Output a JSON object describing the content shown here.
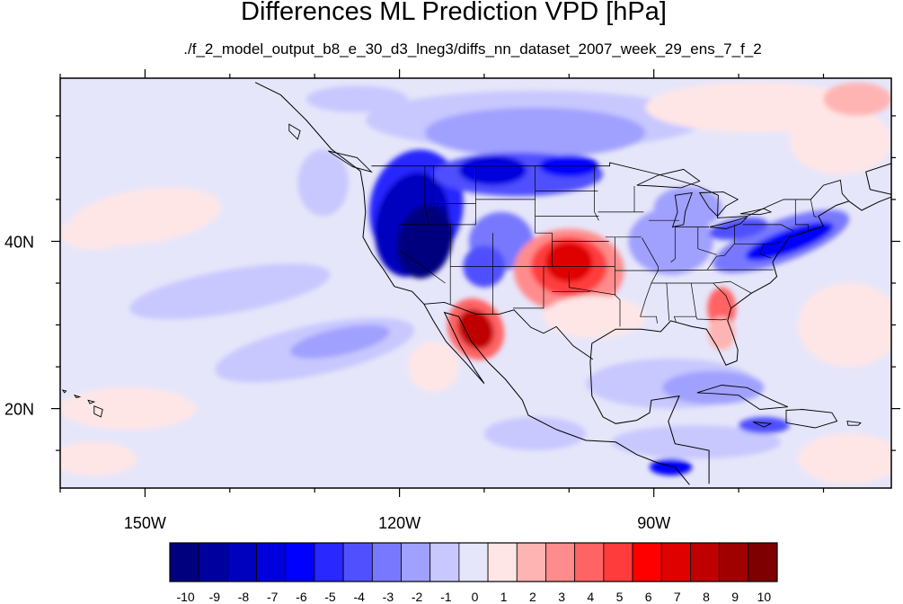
{
  "figure": {
    "title": "Differences ML Prediction VPD [hPa]",
    "subtitle": "./f_2_model_output_b8_e_30_d3_lneg3/diffs_nn_dataset_2007_week_29_ens_7_f_2"
  },
  "map": {
    "projection": "cylindrical-equidistant",
    "lon_range": [
      -160,
      -62
    ],
    "lat_range": [
      10.5,
      59.5
    ],
    "lon_ticks": [
      {
        "value": -150,
        "label": "150W"
      },
      {
        "value": -120,
        "label": "120W"
      },
      {
        "value": -90,
        "label": "90W"
      }
    ],
    "lat_ticks": [
      {
        "value": 40,
        "label": "40N"
      },
      {
        "value": 20,
        "label": "20N"
      }
    ],
    "lon_minor_step": 10,
    "lat_minor_step": 5,
    "background_field": "weak positive/negative differences over ocean (-1 to 1 hPa)",
    "features": [
      {
        "name": "western-us-negative-anomaly",
        "sign": "negative",
        "peak": -10,
        "center": [
          -119,
          41
        ]
      },
      {
        "name": "northern-plains-negative-anomaly",
        "sign": "negative",
        "peak": -7,
        "center": [
          -105,
          48
        ]
      },
      {
        "name": "southern-plains-positive-anomaly",
        "sign": "positive",
        "peak": 7,
        "center": [
          -100,
          37
        ]
      },
      {
        "name": "sonora-positive-anomaly",
        "sign": "positive",
        "peak": 8,
        "center": [
          -111,
          29
        ]
      },
      {
        "name": "northeast-negative-anomaly",
        "sign": "negative",
        "peak": -6,
        "center": [
          -75,
          40
        ]
      },
      {
        "name": "southeast-positive-anomaly",
        "sign": "positive",
        "peak": 4,
        "center": [
          -82,
          32
        ]
      },
      {
        "name": "north-pacific-positive-band",
        "sign": "positive",
        "peak": 2,
        "center": [
          -148,
          43
        ]
      },
      {
        "name": "east-pacific-negative-band",
        "sign": "negative",
        "peak": -2,
        "center": [
          -130,
          26
        ]
      },
      {
        "name": "north-atlantic-positive-band",
        "sign": "positive",
        "peak": 2,
        "center": [
          -70,
          52
        ]
      },
      {
        "name": "canada-negative-band",
        "sign": "negative",
        "peak": -3,
        "center": [
          -100,
          54
        ]
      }
    ]
  },
  "colorbar": {
    "labels": [
      "-10",
      "-9",
      "-8",
      "-7",
      "-6",
      "-5",
      "-4",
      "-3",
      "-2",
      "-1",
      "0",
      "1",
      "2",
      "3",
      "4",
      "5",
      "6",
      "7",
      "8",
      "9",
      "10"
    ],
    "colors": [
      "#00007f",
      "#00009f",
      "#0000bf",
      "#0000df",
      "#0000ff",
      "#2828ff",
      "#5050ff",
      "#7878ff",
      "#a0a0ff",
      "#c8c8ff",
      "#e6e6fa",
      "#ffe6e6",
      "#ffb4b4",
      "#ff8c8c",
      "#ff6464",
      "#ff3c3c",
      "#ff0000",
      "#df0000",
      "#bf0000",
      "#9f0000",
      "#7f0000"
    ]
  }
}
